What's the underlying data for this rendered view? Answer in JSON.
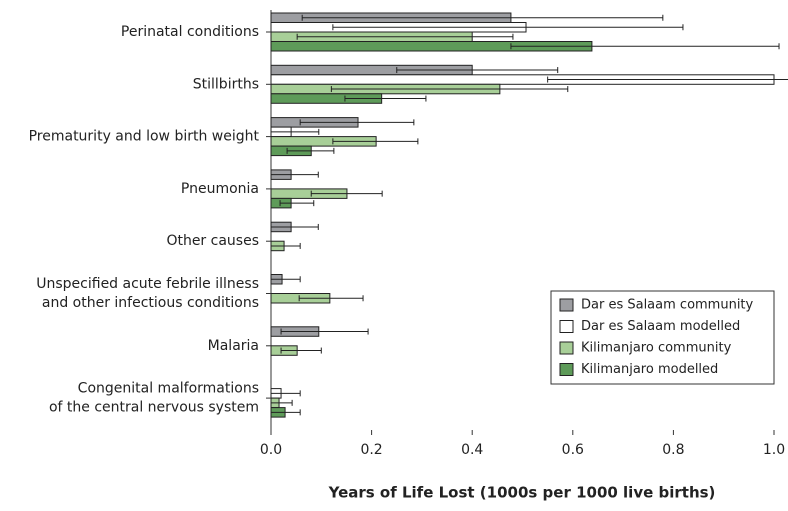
{
  "chart_data": {
    "type": "bar",
    "orientation": "horizontal",
    "x_label": "Years of Life Lost (1000s per 1000 live births)",
    "categories": [
      "Perinatal conditions",
      "Stillbirths",
      "Prematurity and low birth weight",
      "Pneumonia",
      "Other causes",
      "Unspecified acute febrile illness\nand other infectious conditions",
      "Malaria",
      "Congenital malformations\nof the central nervous system"
    ],
    "series": [
      {
        "name": "Dar es Salaam community",
        "color": "#9d9ea2",
        "values": [
          0.477,
          0.4,
          0.173,
          0.04,
          0.04,
          0.022,
          0.095,
          null
        ],
        "error_low": [
          0.062,
          0.25,
          0.058,
          0,
          0,
          0,
          0.02,
          null
        ],
        "error_high": [
          0.779,
          0.57,
          0.284,
          0.094,
          0.094,
          0.058,
          0.193,
          null
        ]
      },
      {
        "name": "Dar es Salaam modelled",
        "color": "#ffffff",
        "values": [
          0.507,
          1.0,
          0.04,
          null,
          null,
          null,
          null,
          0.02
        ],
        "error_low": [
          0.123,
          0.55,
          0,
          null,
          null,
          null,
          null,
          0
        ],
        "error_high": [
          0.819,
          1.03,
          0.095,
          null,
          null,
          null,
          null,
          0.058
        ]
      },
      {
        "name": "Kilimanjaro community",
        "color": "#a8cf98",
        "values": [
          0.4,
          0.455,
          0.209,
          0.151,
          0.026,
          0.117,
          0.052,
          0.016
        ],
        "error_low": [
          0.052,
          0.12,
          0.123,
          0.08,
          0,
          0.056,
          0.02,
          0
        ],
        "error_high": [
          0.481,
          0.59,
          0.292,
          0.221,
          0.058,
          0.183,
          0.1,
          0.042
        ]
      },
      {
        "name": "Kilimanjaro modelled",
        "color": "#5e9b59",
        "values": [
          0.638,
          0.22,
          0.08,
          0.04,
          null,
          null,
          null,
          0.028
        ],
        "error_low": [
          0.477,
          0.147,
          0.032,
          0.018,
          null,
          null,
          null,
          0
        ],
        "error_high": [
          1.01,
          0.308,
          0.125,
          0.085,
          null,
          null,
          null,
          0.058
        ]
      }
    ],
    "xlim": [
      0,
      1.0
    ],
    "xticks": [
      {
        "value": 0,
        "label": "0.0"
      },
      0.2,
      0.4,
      0.6,
      0.8,
      {
        "value": 1,
        "label": "1.0"
      }
    ],
    "legend": "lower right"
  }
}
